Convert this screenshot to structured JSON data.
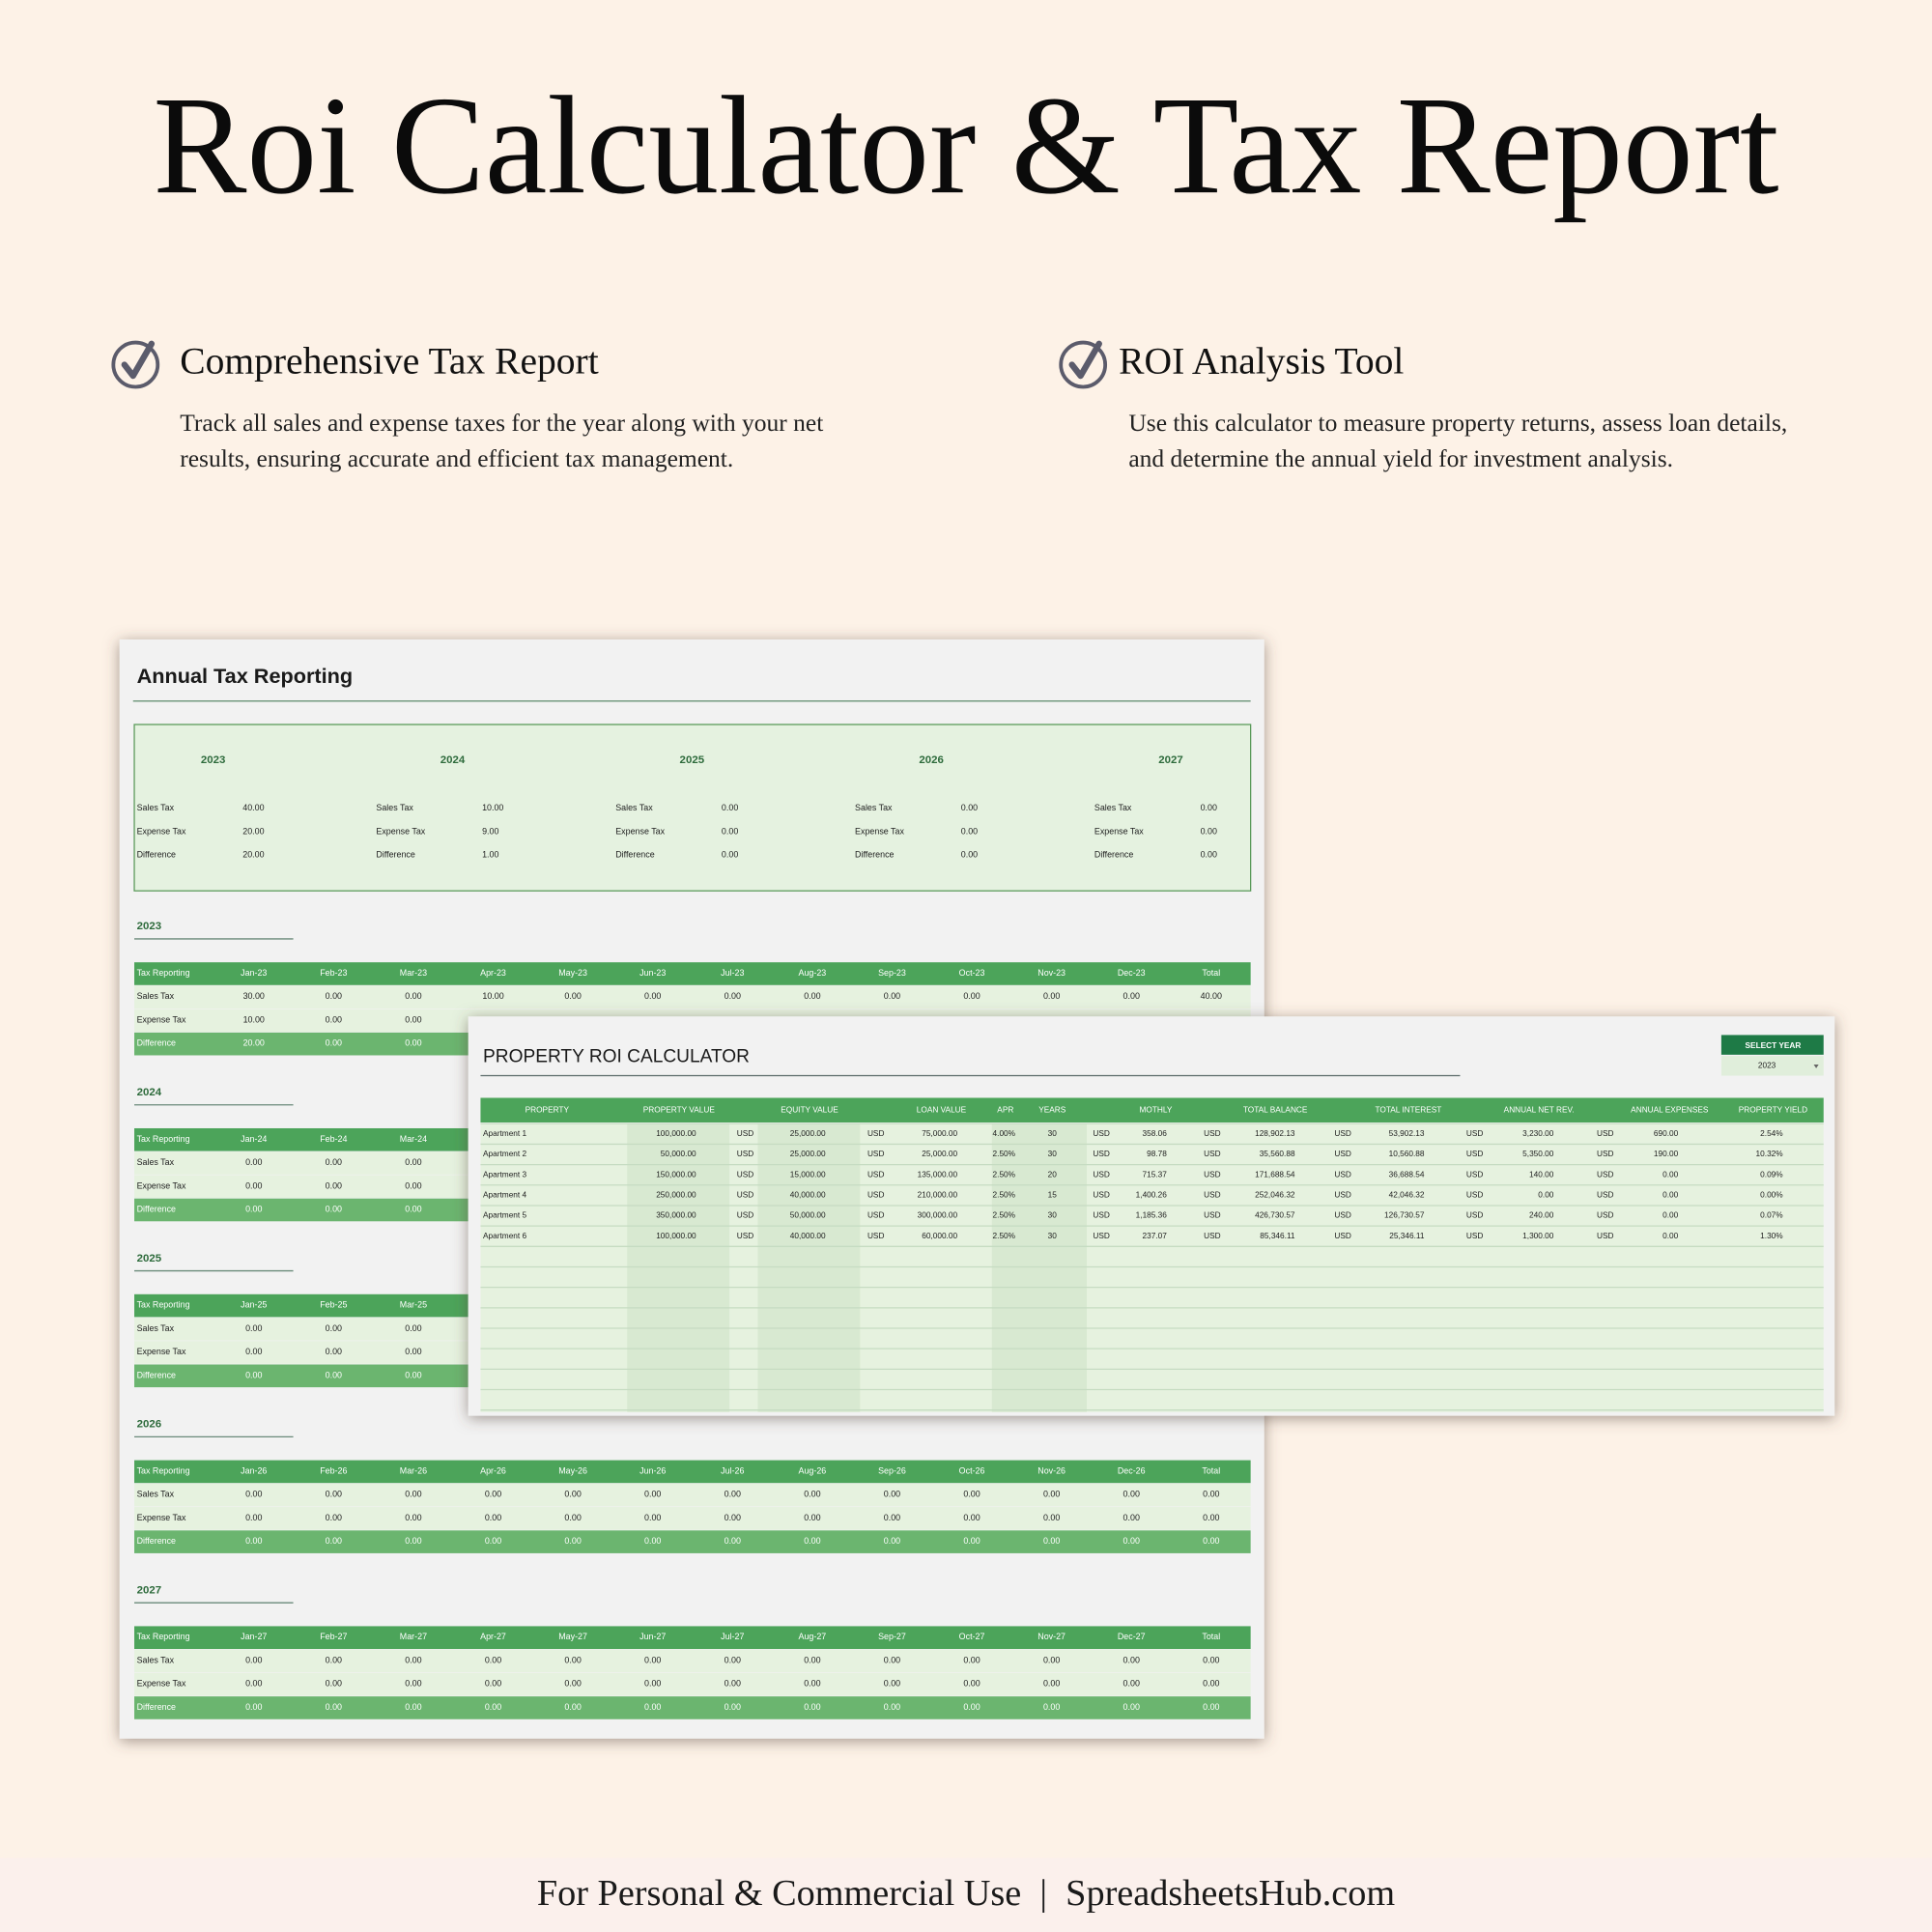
{
  "header": {
    "title": "Roi Calculator & Tax Report"
  },
  "features": [
    {
      "title": "Comprehensive Tax Report",
      "lines": [
        "Track all sales and expense taxes for the year along with your net",
        "results, ensuring accurate and efficient tax management."
      ]
    },
    {
      "title": "ROI Analysis Tool",
      "lines": [
        "Use this calculator to measure property returns, assess loan details,",
        "and determine the annual yield for investment analysis."
      ]
    }
  ],
  "tax_report": {
    "title": "Annual Tax Reporting",
    "summary": [
      {
        "year": "2023",
        "rows": [
          [
            "Sales Tax",
            "40.00"
          ],
          [
            "Expense Tax",
            "20.00"
          ],
          [
            "Difference",
            "20.00"
          ]
        ]
      },
      {
        "year": "2024",
        "rows": [
          [
            "Sales Tax",
            "10.00"
          ],
          [
            "Expense Tax",
            "9.00"
          ],
          [
            "Difference",
            "1.00"
          ]
        ]
      },
      {
        "year": "2025",
        "rows": [
          [
            "Sales Tax",
            "0.00"
          ],
          [
            "Expense Tax",
            "0.00"
          ],
          [
            "Difference",
            "0.00"
          ]
        ]
      },
      {
        "year": "2026",
        "rows": [
          [
            "Sales Tax",
            "0.00"
          ],
          [
            "Expense Tax",
            "0.00"
          ],
          [
            "Difference",
            "0.00"
          ]
        ]
      },
      {
        "year": "2027",
        "rows": [
          [
            "Sales Tax",
            "0.00"
          ],
          [
            "Expense Tax",
            "0.00"
          ],
          [
            "Difference",
            "0.00"
          ]
        ]
      }
    ],
    "years": [
      {
        "year": "2023",
        "header": [
          "Tax Reporting",
          "Jan-23",
          "Feb-23",
          "Mar-23",
          "Apr-23",
          "May-23",
          "Jun-23",
          "Jul-23",
          "Aug-23",
          "Sep-23",
          "Oct-23",
          "Nov-23",
          "Dec-23",
          "Total"
        ],
        "rows": [
          [
            "Sales Tax",
            "30.00",
            "0.00",
            "0.00",
            "10.00",
            "0.00",
            "0.00",
            "0.00",
            "0.00",
            "0.00",
            "0.00",
            "0.00",
            "0.00",
            "40.00"
          ],
          [
            "Expense Tax",
            "10.00",
            "0.00",
            "0.00"
          ],
          [
            "Difference",
            "20.00",
            "0.00",
            "0.00"
          ]
        ]
      },
      {
        "year": "2024",
        "header": [
          "Tax Reporting",
          "Jan-24",
          "Feb-24",
          "Mar-24"
        ],
        "rows": [
          [
            "Sales Tax",
            "0.00",
            "0.00",
            "0.00"
          ],
          [
            "Expense Tax",
            "0.00",
            "0.00",
            "0.00"
          ],
          [
            "Difference",
            "0.00",
            "0.00",
            "0.00"
          ]
        ]
      },
      {
        "year": "2025",
        "header": [
          "Tax Reporting",
          "Jan-25",
          "Feb-25",
          "Mar-25"
        ],
        "rows": [
          [
            "Sales Tax",
            "0.00",
            "0.00",
            "0.00"
          ],
          [
            "Expense Tax",
            "0.00",
            "0.00",
            "0.00"
          ],
          [
            "Difference",
            "0.00",
            "0.00",
            "0.00"
          ]
        ]
      },
      {
        "year": "2026",
        "header": [
          "Tax Reporting",
          "Jan-26",
          "Feb-26",
          "Mar-26",
          "Apr-26",
          "May-26",
          "Jun-26",
          "Jul-26",
          "Aug-26",
          "Sep-26",
          "Oct-26",
          "Nov-26",
          "Dec-26",
          "Total"
        ],
        "rows": [
          [
            "Sales Tax",
            "0.00",
            "0.00",
            "0.00",
            "0.00",
            "0.00",
            "0.00",
            "0.00",
            "0.00",
            "0.00",
            "0.00",
            "0.00",
            "0.00",
            "0.00"
          ],
          [
            "Expense Tax",
            "0.00",
            "0.00",
            "0.00",
            "0.00",
            "0.00",
            "0.00",
            "0.00",
            "0.00",
            "0.00",
            "0.00",
            "0.00",
            "0.00",
            "0.00"
          ],
          [
            "Difference",
            "0.00",
            "0.00",
            "0.00",
            "0.00",
            "0.00",
            "0.00",
            "0.00",
            "0.00",
            "0.00",
            "0.00",
            "0.00",
            "0.00",
            "0.00"
          ]
        ]
      },
      {
        "year": "2027",
        "header": [
          "Tax Reporting",
          "Jan-27",
          "Feb-27",
          "Mar-27",
          "Apr-27",
          "May-27",
          "Jun-27",
          "Jul-27",
          "Aug-27",
          "Sep-27",
          "Oct-27",
          "Nov-27",
          "Dec-27",
          "Total"
        ],
        "rows": [
          [
            "Sales Tax",
            "0.00",
            "0.00",
            "0.00",
            "0.00",
            "0.00",
            "0.00",
            "0.00",
            "0.00",
            "0.00",
            "0.00",
            "0.00",
            "0.00",
            "0.00"
          ],
          [
            "Expense Tax",
            "0.00",
            "0.00",
            "0.00",
            "0.00",
            "0.00",
            "0.00",
            "0.00",
            "0.00",
            "0.00",
            "0.00",
            "0.00",
            "0.00",
            "0.00"
          ],
          [
            "Difference",
            "0.00",
            "0.00",
            "0.00",
            "0.00",
            "0.00",
            "0.00",
            "0.00",
            "0.00",
            "0.00",
            "0.00",
            "0.00",
            "0.00",
            "0.00"
          ]
        ]
      }
    ]
  },
  "roi": {
    "title": "PROPERTY ROI CALCULATOR",
    "select_label": "SELECT YEAR",
    "selected_year": "2023",
    "columns": [
      "PROPERTY",
      "PROPERTY VALUE",
      "EQUITY VALUE",
      "LOAN VALUE",
      "APR",
      "YEARS",
      "MOTHLY",
      "TOTAL BALANCE",
      "TOTAL INTEREST",
      "ANNUAL NET REV.",
      "ANNUAL EXPENSES",
      "PROPERTY YIELD"
    ],
    "rows": [
      [
        "Apartment 1",
        "100,000.00",
        "USD",
        "25,000.00",
        "USD",
        "75,000.00",
        "4.00%",
        "30",
        "USD",
        "358.06",
        "USD",
        "128,902.13",
        "USD",
        "53,902.13",
        "USD",
        "3,230.00",
        "USD",
        "690.00",
        "2.54%"
      ],
      [
        "Apartment 2",
        "50,000.00",
        "USD",
        "25,000.00",
        "USD",
        "25,000.00",
        "2.50%",
        "30",
        "USD",
        "98.78",
        "USD",
        "35,560.88",
        "USD",
        "10,560.88",
        "USD",
        "5,350.00",
        "USD",
        "190.00",
        "10.32%"
      ],
      [
        "Apartment 3",
        "150,000.00",
        "USD",
        "15,000.00",
        "USD",
        "135,000.00",
        "2.50%",
        "20",
        "USD",
        "715.37",
        "USD",
        "171,688.54",
        "USD",
        "36,688.54",
        "USD",
        "140.00",
        "USD",
        "0.00",
        "0.09%"
      ],
      [
        "Apartment 4",
        "250,000.00",
        "USD",
        "40,000.00",
        "USD",
        "210,000.00",
        "2.50%",
        "15",
        "USD",
        "1,400.26",
        "USD",
        "252,046.32",
        "USD",
        "42,046.32",
        "USD",
        "0.00",
        "USD",
        "0.00",
        "0.00%"
      ],
      [
        "Apartment 5",
        "350,000.00",
        "USD",
        "50,000.00",
        "USD",
        "300,000.00",
        "2.50%",
        "30",
        "USD",
        "1,185.36",
        "USD",
        "426,730.57",
        "USD",
        "126,730.57",
        "USD",
        "240.00",
        "USD",
        "0.00",
        "0.07%"
      ],
      [
        "Apartment 6",
        "100,000.00",
        "USD",
        "40,000.00",
        "USD",
        "60,000.00",
        "2.50%",
        "30",
        "USD",
        "237.07",
        "USD",
        "85,346.11",
        "USD",
        "25,346.11",
        "USD",
        "1,300.00",
        "USD",
        "0.00",
        "1.30%"
      ]
    ]
  },
  "footer": "For Personal & Commercial Use  |  SpreadsheetsHub.com"
}
